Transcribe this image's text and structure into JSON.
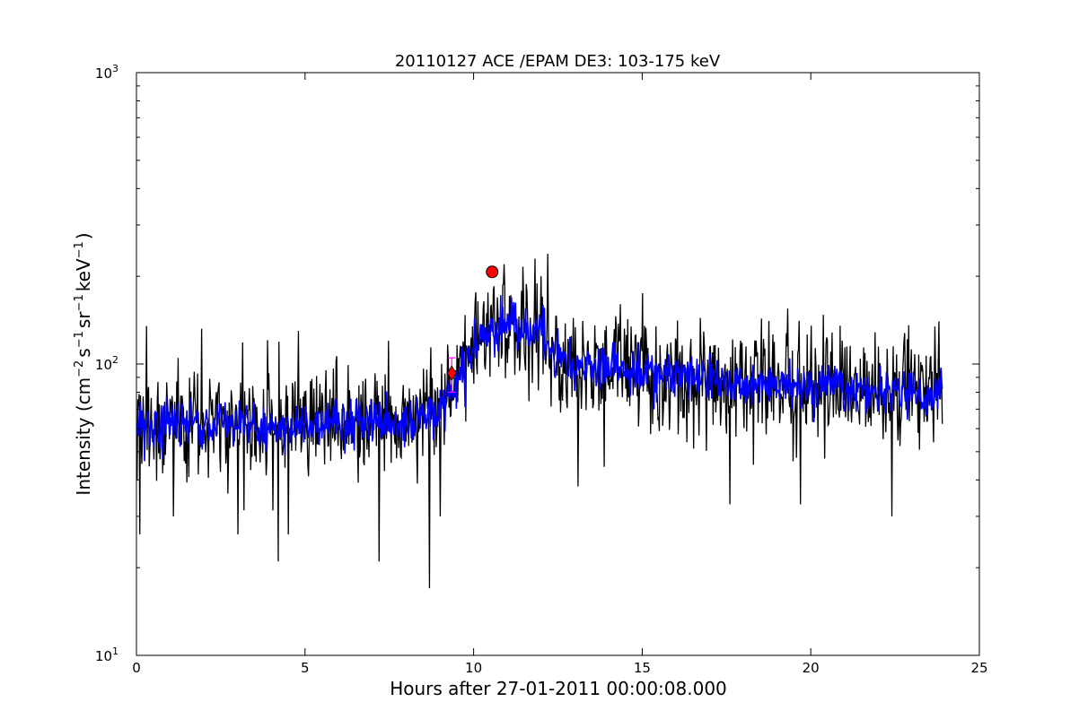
{
  "chart_data": {
    "type": "line",
    "title": "20110127 ACE /EPAM DE3: 103-175 keV",
    "xlabel": "Hours after 27-01-2011 00:00:08.000",
    "ylabel": {
      "prefix": "Intensity (cm",
      "sup1": "−2",
      "mid1": "s",
      "sup2": "−1",
      "mid2": "sr",
      "sup3": "−1",
      "mid3": "keV",
      "sup4": "−1",
      "suffix": ")"
    },
    "xlim": [
      0,
      25
    ],
    "ylim": [
      10,
      1000
    ],
    "yscale": "log",
    "grid": false,
    "x_ticks": [
      {
        "value": 0,
        "label": "0"
      },
      {
        "value": 5,
        "label": "5"
      },
      {
        "value": 10,
        "label": "10"
      },
      {
        "value": 15,
        "label": "15"
      },
      {
        "value": 20,
        "label": "20"
      },
      {
        "value": 25,
        "label": "25"
      }
    ],
    "y_ticks": [
      {
        "value": 10,
        "base": "10",
        "exp": "1"
      },
      {
        "value": 100,
        "base": "10",
        "exp": "2"
      },
      {
        "value": 1000,
        "base": "10",
        "exp": "3"
      }
    ],
    "series": [
      {
        "kind": "raw",
        "color": "#000000",
        "x_start": 0.0,
        "x_end": 23.9,
        "n_points": 1200,
        "profile": [
          {
            "x": 0.0,
            "y": 62
          },
          {
            "x": 2.0,
            "y": 62
          },
          {
            "x": 4.0,
            "y": 60
          },
          {
            "x": 6.0,
            "y": 63
          },
          {
            "x": 8.0,
            "y": 64
          },
          {
            "x": 9.0,
            "y": 68
          },
          {
            "x": 9.4,
            "y": 85
          },
          {
            "x": 10.0,
            "y": 115
          },
          {
            "x": 11.0,
            "y": 140
          },
          {
            "x": 12.0,
            "y": 130
          },
          {
            "x": 12.4,
            "y": 105
          },
          {
            "x": 13.0,
            "y": 100
          },
          {
            "x": 15.0,
            "y": 95
          },
          {
            "x": 18.0,
            "y": 86
          },
          {
            "x": 21.0,
            "y": 82
          },
          {
            "x": 23.9,
            "y": 78
          }
        ],
        "noise_fraction": 0.22,
        "spikes": [
          {
            "x": 0.1,
            "y": 26
          },
          {
            "x": 1.1,
            "y": 30
          },
          {
            "x": 3.0,
            "y": 26
          },
          {
            "x": 4.2,
            "y": 21
          },
          {
            "x": 4.5,
            "y": 26
          },
          {
            "x": 7.2,
            "y": 21
          },
          {
            "x": 8.7,
            "y": 17
          },
          {
            "x": 9.0,
            "y": 30
          },
          {
            "x": 10.9,
            "y": 220
          },
          {
            "x": 12.0,
            "y": 200
          },
          {
            "x": 13.1,
            "y": 38
          },
          {
            "x": 15.0,
            "y": 175
          },
          {
            "x": 17.6,
            "y": 33
          },
          {
            "x": 19.7,
            "y": 33
          },
          {
            "x": 22.4,
            "y": 30
          },
          {
            "x": 0.3,
            "y": 135
          },
          {
            "x": 4.8,
            "y": 130
          }
        ]
      },
      {
        "kind": "smoothed",
        "color": "#0000ff",
        "x_start": 0.0,
        "x_end": 23.9,
        "n_points": 1200,
        "noise_fraction": 0.09
      }
    ],
    "markers": [
      {
        "type": "circle",
        "x": 10.55,
        "y": 207,
        "color": "#ff0000"
      },
      {
        "type": "diamond",
        "x": 9.35,
        "y": 93,
        "color": "#ff0000"
      }
    ],
    "errorbar": {
      "x": 9.35,
      "y_low": 80,
      "y_high": 105,
      "color": "#ff00ff"
    }
  }
}
